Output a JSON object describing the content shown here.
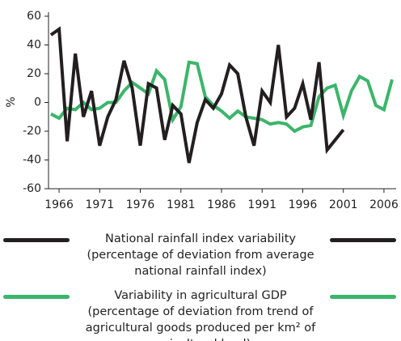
{
  "chart_data": {
    "type": "line",
    "ylabel": "%",
    "xlim": [
      1964.7,
      2007.5
    ],
    "xticks": [
      1966,
      1971,
      1976,
      1981,
      1986,
      1991,
      1996,
      2001,
      2006
    ],
    "ylim": [
      -60,
      60
    ],
    "yticks": [
      -60,
      -40,
      -20,
      0,
      20,
      40,
      60
    ],
    "grid": false,
    "series": [
      {
        "name": "National rainfall index variability (percentage of deviation from average national rainfall index)",
        "color": "#231f20",
        "x": [
          1965,
          1966,
          1967,
          1968,
          1969,
          1970,
          1971,
          1972,
          1973,
          1974,
          1975,
          1976,
          1977,
          1978,
          1979,
          1980,
          1981,
          1982,
          1983,
          1984,
          1985,
          1986,
          1987,
          1988,
          1989,
          1990,
          1991,
          1992,
          1993,
          1994,
          1995,
          1996,
          1997,
          1998,
          1999,
          2000,
          2001
        ],
        "values": [
          47,
          51,
          -27,
          34,
          -10,
          8,
          -30,
          -10,
          2,
          29,
          10,
          -30,
          13,
          10,
          -26,
          -2,
          -8,
          -42,
          -14,
          2,
          -4,
          6,
          26,
          20,
          -10,
          -30,
          8,
          0,
          40,
          -10,
          -4,
          13,
          -12,
          28,
          -33,
          -26,
          -19
        ]
      },
      {
        "name": "Variability in agricultural GDP (percentage of deviation from trend of agricultural goods produced per km² of agricultural land)",
        "color": "#3cb56a",
        "x": [
          1965,
          1966,
          1967,
          1968,
          1969,
          1970,
          1971,
          1972,
          1973,
          1974,
          1975,
          1976,
          1977,
          1978,
          1979,
          1980,
          1981,
          1982,
          1983,
          1984,
          1985,
          1986,
          1987,
          1988,
          1989,
          1990,
          1991,
          1992,
          1993,
          1994,
          1995,
          1996,
          1997,
          1998,
          1999,
          2000,
          2001,
          2002,
          2003,
          2004,
          2005,
          2006,
          2007
        ],
        "values": [
          -8,
          -11,
          -4,
          -5,
          0,
          -5,
          -4,
          0,
          0,
          8,
          14,
          10,
          6,
          22,
          16,
          -12,
          -3,
          28,
          27,
          4,
          -2,
          -6,
          -11,
          -6,
          -10,
          -11,
          -12,
          -15,
          -14,
          -15,
          -20,
          -17,
          -16,
          4,
          10,
          12,
          -9,
          8,
          18,
          15,
          -2,
          -5,
          16
        ]
      }
    ]
  }
}
